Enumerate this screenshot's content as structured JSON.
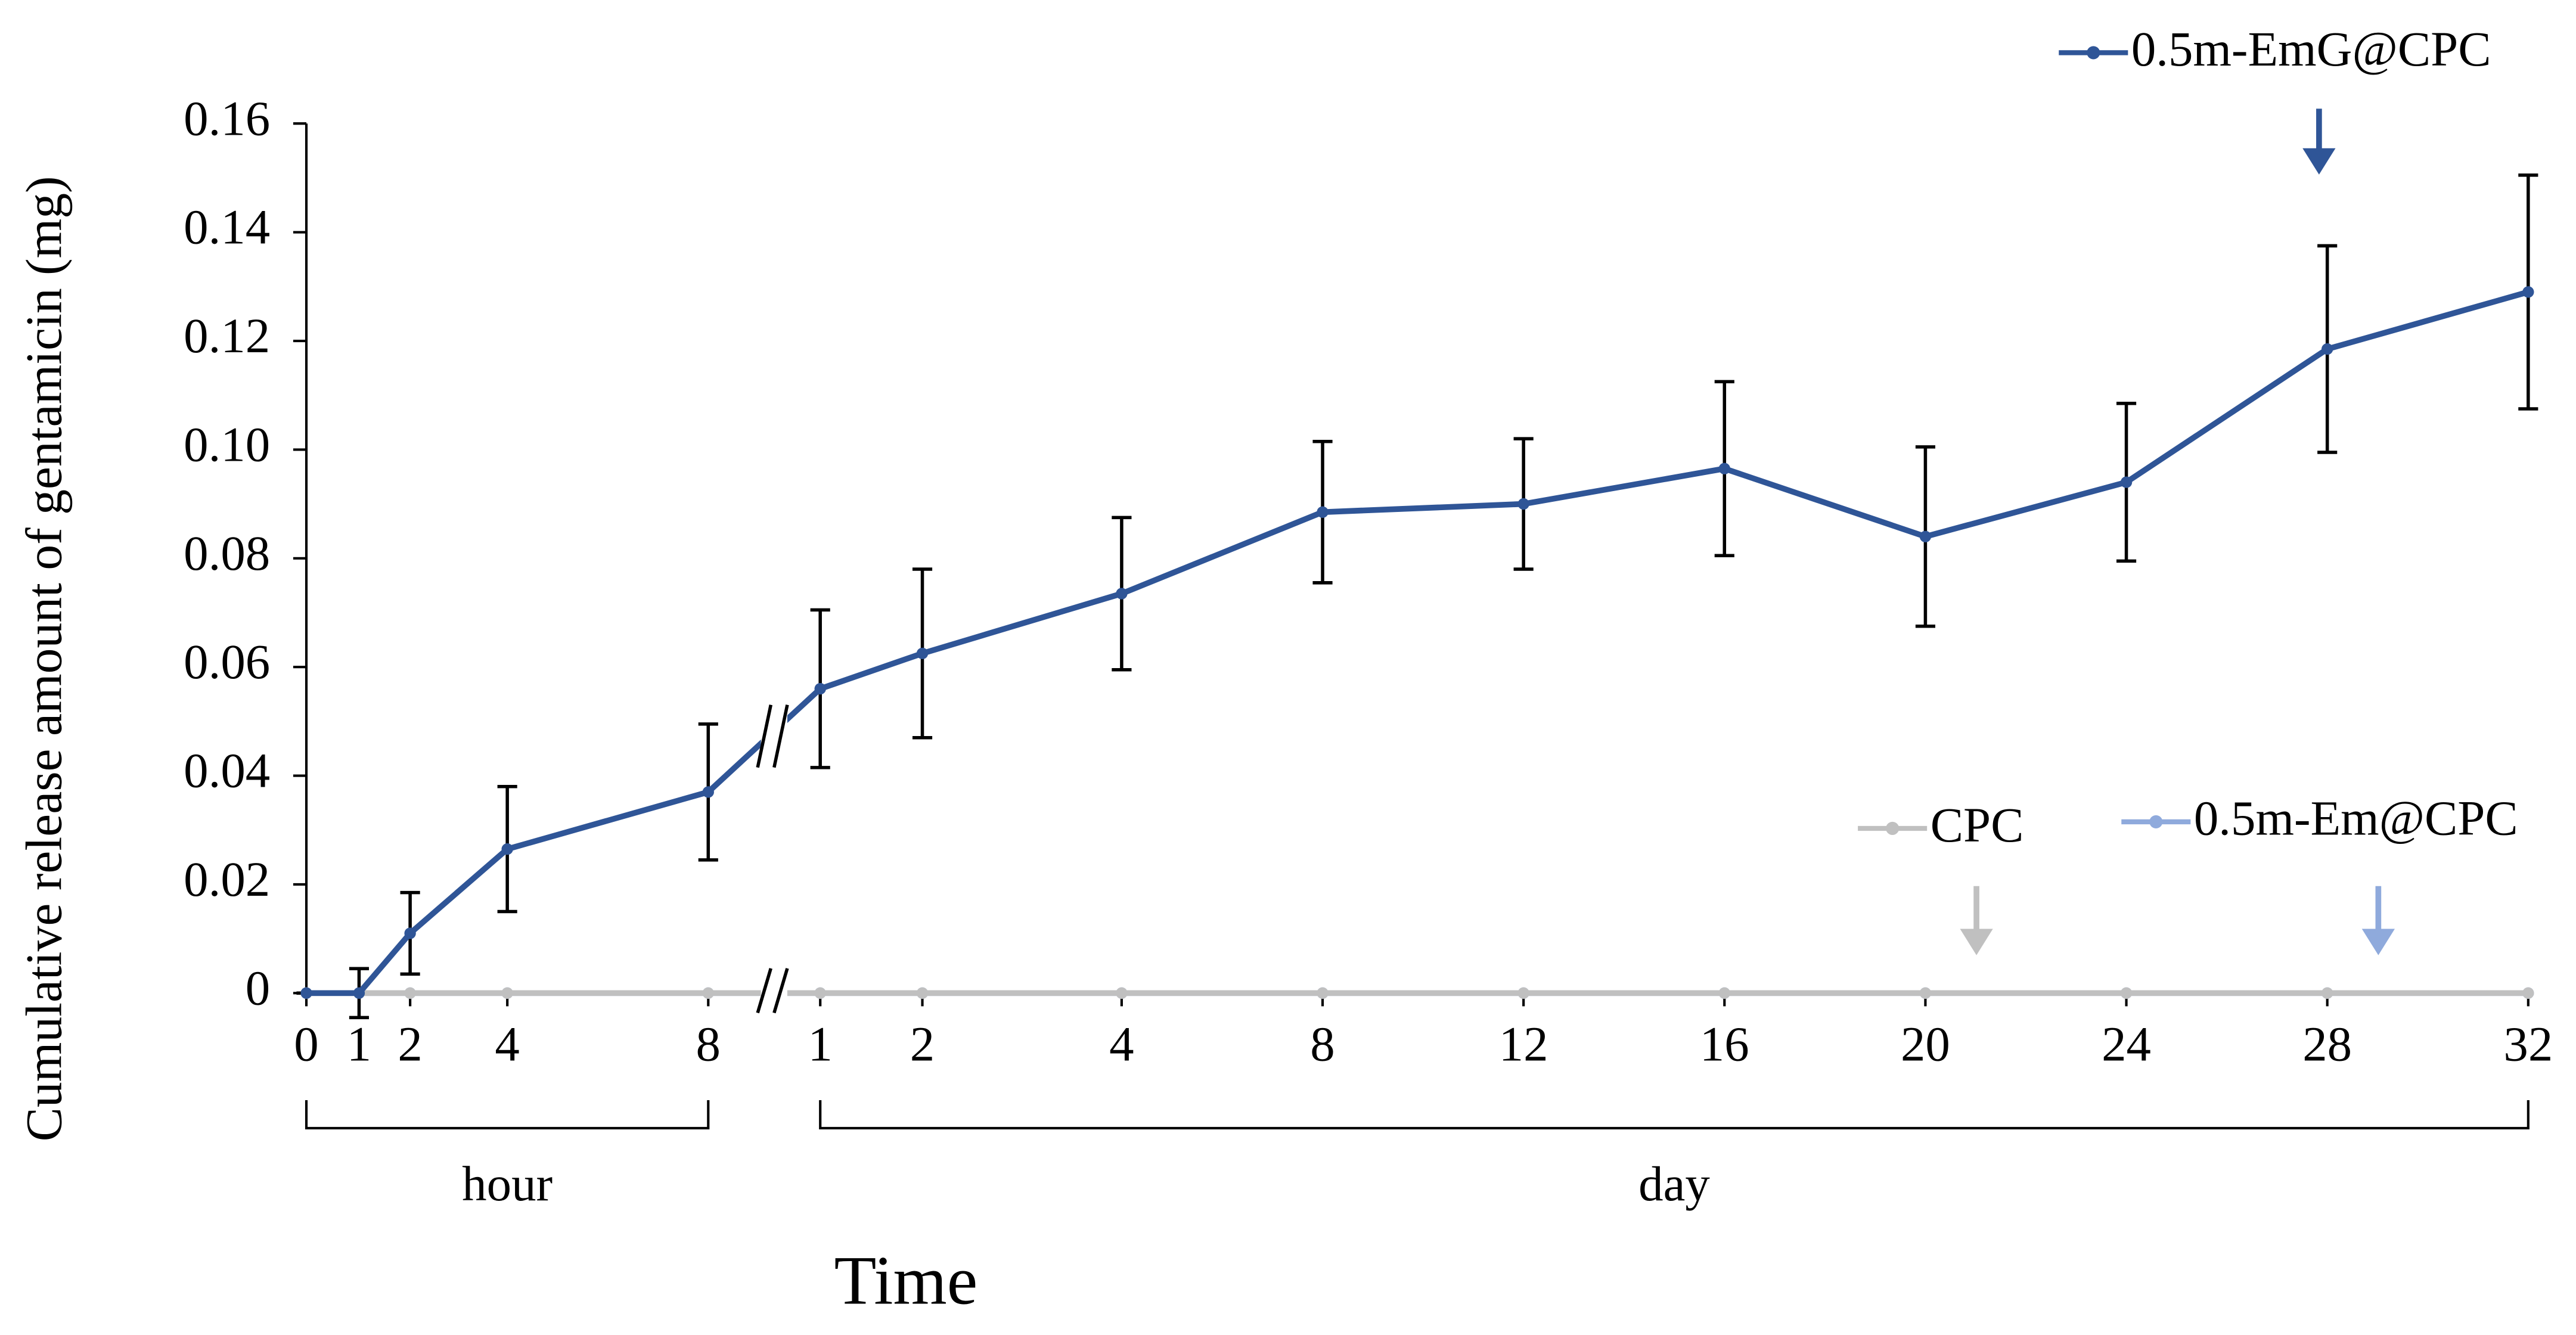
{
  "chart_data": {
    "type": "line",
    "y_label": "Cumulative release amount of gentamicin (mg)",
    "x_label": "Time",
    "categories": [
      "0",
      "1",
      "2",
      "4",
      "8",
      "1",
      "2",
      "4",
      "8",
      "12",
      "16",
      "20",
      "24",
      "28",
      "32"
    ],
    "groups": [
      {
        "label": "hour",
        "from": 0,
        "to": 4
      },
      {
        "label": "day",
        "from": 5,
        "to": 14
      }
    ],
    "ylim": [
      0,
      0.16
    ],
    "yticks": [
      0,
      0.02,
      0.04,
      0.06,
      0.08,
      {
        "value": 0.1,
        "label": "0.10"
      },
      0.12,
      0.14,
      0.16
    ],
    "series": [
      {
        "name": "0.5m-EmG@CPC",
        "color": "#2f5597",
        "values": [
          0,
          0,
          0.011,
          0.0265,
          0.037,
          0.056,
          0.0625,
          0.0735,
          0.0885,
          0.09,
          0.0965,
          0.084,
          0.094,
          0.1185,
          0.129
        ],
        "errors": [
          0,
          0.0045,
          0.0075,
          0.0115,
          0.0125,
          0.0145,
          0.0155,
          0.014,
          0.013,
          0.012,
          0.016,
          0.0165,
          0.0145,
          0.019,
          0.0215
        ]
      },
      {
        "name": "CPC",
        "color": "#c0c0c0",
        "values": [
          0,
          0,
          0,
          0,
          0,
          0,
          0,
          0,
          0,
          0,
          0,
          0,
          0,
          0,
          0
        ]
      },
      {
        "name": "0.5m-Em@CPC",
        "color": "#8faadc",
        "values": [
          0,
          0,
          0,
          0,
          0,
          0,
          0,
          0,
          0,
          0,
          0,
          0,
          0,
          0,
          0
        ]
      }
    ]
  }
}
